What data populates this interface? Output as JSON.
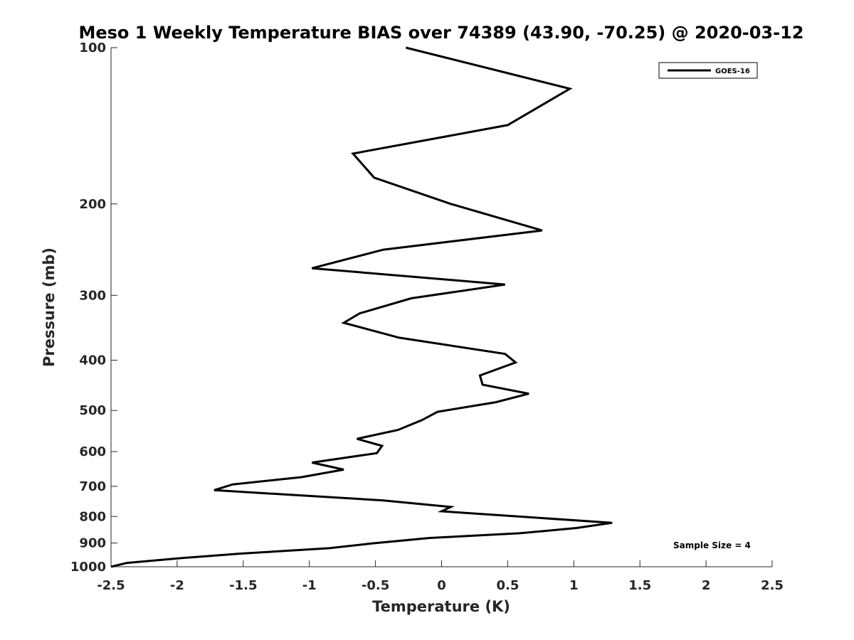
{
  "chart_data": {
    "type": "line",
    "title": "Meso 1 Weekly Temperature BIAS over 74389 (43.90, -70.25) @ 2020-03-12",
    "xlabel": "Temperature (K)",
    "ylabel": "Pressure (mb)",
    "xlim": [
      -2.5,
      2.5
    ],
    "ylim": [
      100,
      1000
    ],
    "y_scale": "log",
    "y_inverted": true,
    "x_ticks": [
      -2.5,
      -2,
      -1.5,
      -1,
      -0.5,
      0,
      0.5,
      1,
      1.5,
      2,
      2.5
    ],
    "x_tick_labels": [
      "-2.5",
      "-2",
      "-1.5",
      "-1",
      "-0.5",
      "0",
      "0.5",
      "1",
      "1.5",
      "2",
      "2.5"
    ],
    "y_ticks": [
      100,
      200,
      300,
      400,
      500,
      600,
      700,
      800,
      900,
      1000
    ],
    "y_tick_labels": [
      "100",
      "200",
      "300",
      "400",
      "500",
      "600",
      "700",
      "800",
      "900",
      "1000"
    ],
    "grid": false,
    "legend_position": "top-right",
    "annotation": "Sample Size = 4",
    "series": [
      {
        "name": "GOES-16",
        "color": "#000000",
        "x": [
          -0.27,
          0.97,
          0.5,
          -0.67,
          -0.51,
          0.07,
          0.76,
          -0.44,
          -0.98,
          0.48,
          -0.23,
          -0.62,
          -0.74,
          -0.32,
          0.48,
          0.56,
          0.29,
          0.31,
          0.66,
          0.41,
          -0.03,
          -0.15,
          -0.33,
          -0.64,
          -0.45,
          -0.49,
          -0.98,
          -0.74,
          -1.06,
          -1.58,
          -1.72,
          -0.44,
          0.07,
          0.0,
          1.29,
          1.02,
          0.59,
          -0.09,
          -0.53,
          -0.85,
          -1.51,
          -1.98,
          -2.38,
          -2.5
        ],
        "y": [
          100,
          120,
          141,
          160,
          178,
          200,
          225,
          245,
          266,
          286,
          304,
          325,
          339,
          362,
          389,
          404,
          428,
          446,
          464,
          482,
          503,
          522,
          545,
          567,
          585,
          604,
          630,
          650,
          672,
          694,
          712,
          745,
          767,
          782,
          823,
          842,
          862,
          880,
          902,
          921,
          943,
          963,
          983,
          1000
        ]
      }
    ]
  }
}
